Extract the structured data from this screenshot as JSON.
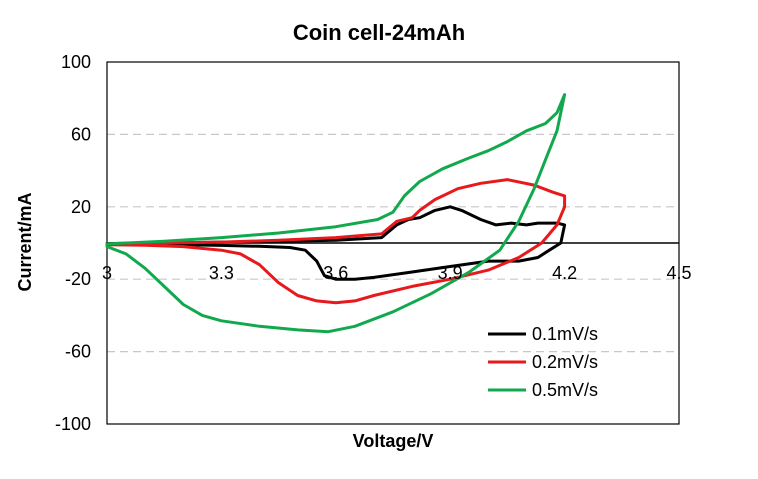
{
  "chart_data": {
    "type": "line",
    "title": "Coin cell-24mAh",
    "xlabel": "Voltage/V",
    "ylabel": "Current/mA",
    "xlim": [
      3,
      4.5
    ],
    "ylim": [
      -100,
      100
    ],
    "xticks": [
      3,
      3.3,
      3.6,
      3.9,
      4.2,
      4.5
    ],
    "xtick_labels": [
      "3",
      "3.3",
      "3.6",
      "3.9",
      "4.2",
      "4.5"
    ],
    "yticks": [
      -100,
      -60,
      -20,
      20,
      60,
      100
    ],
    "ytick_labels": [
      "-100",
      "-60",
      "-20",
      "20",
      "60",
      "100"
    ],
    "grid": "horizontal-dashed",
    "legend_position": "bottom-right",
    "series": [
      {
        "name": "0.1mV/s",
        "color": "#000000",
        "points": [
          [
            3.0,
            -0.5
          ],
          [
            3.1,
            -0.8
          ],
          [
            3.2,
            -1.0
          ],
          [
            3.3,
            -1.3
          ],
          [
            3.4,
            -1.8
          ],
          [
            3.48,
            -2.5
          ],
          [
            3.52,
            -4
          ],
          [
            3.55,
            -10
          ],
          [
            3.57,
            -18
          ],
          [
            3.6,
            -20
          ],
          [
            3.65,
            -20
          ],
          [
            3.7,
            -19
          ],
          [
            3.8,
            -16
          ],
          [
            3.9,
            -13
          ],
          [
            4.0,
            -10
          ],
          [
            4.08,
            -10
          ],
          [
            4.13,
            -8
          ],
          [
            4.16,
            -4
          ],
          [
            4.19,
            0
          ],
          [
            4.2,
            10
          ],
          [
            4.18,
            11
          ],
          [
            4.13,
            11
          ],
          [
            4.1,
            10
          ],
          [
            4.06,
            11
          ],
          [
            4.02,
            10
          ],
          [
            3.98,
            13
          ],
          [
            3.93,
            18
          ],
          [
            3.9,
            20
          ],
          [
            3.86,
            18
          ],
          [
            3.82,
            14
          ],
          [
            3.79,
            13
          ],
          [
            3.76,
            10
          ],
          [
            3.72,
            3
          ],
          [
            3.6,
            1.5
          ],
          [
            3.45,
            1
          ],
          [
            3.3,
            0.5
          ],
          [
            3.15,
            0
          ],
          [
            3.0,
            -0.3
          ]
        ]
      },
      {
        "name": "0.2mV/s",
        "color": "#e8191c",
        "points": [
          [
            3.0,
            -1
          ],
          [
            3.1,
            -1.2
          ],
          [
            3.2,
            -2
          ],
          [
            3.3,
            -4
          ],
          [
            3.35,
            -6
          ],
          [
            3.4,
            -12
          ],
          [
            3.45,
            -22
          ],
          [
            3.5,
            -29
          ],
          [
            3.55,
            -32
          ],
          [
            3.6,
            -33
          ],
          [
            3.65,
            -32
          ],
          [
            3.7,
            -29
          ],
          [
            3.8,
            -24
          ],
          [
            3.9,
            -20
          ],
          [
            4.0,
            -15
          ],
          [
            4.08,
            -8
          ],
          [
            4.14,
            0
          ],
          [
            4.18,
            10
          ],
          [
            4.2,
            20
          ],
          [
            4.2,
            26
          ],
          [
            4.17,
            28
          ],
          [
            4.12,
            32
          ],
          [
            4.05,
            35
          ],
          [
            3.98,
            33
          ],
          [
            3.92,
            30
          ],
          [
            3.86,
            24
          ],
          [
            3.82,
            18
          ],
          [
            3.8,
            14
          ],
          [
            3.76,
            12
          ],
          [
            3.72,
            5
          ],
          [
            3.6,
            3
          ],
          [
            3.45,
            1.5
          ],
          [
            3.3,
            0.5
          ],
          [
            3.15,
            0
          ],
          [
            3.0,
            -0.5
          ]
        ]
      },
      {
        "name": "0.5mV/s",
        "color": "#12a84e",
        "points": [
          [
            3.0,
            -2
          ],
          [
            3.05,
            -6
          ],
          [
            3.1,
            -14
          ],
          [
            3.15,
            -24
          ],
          [
            3.2,
            -34
          ],
          [
            3.25,
            -40
          ],
          [
            3.3,
            -43
          ],
          [
            3.4,
            -46
          ],
          [
            3.5,
            -48
          ],
          [
            3.58,
            -49
          ],
          [
            3.65,
            -46
          ],
          [
            3.75,
            -38
          ],
          [
            3.85,
            -28
          ],
          [
            3.95,
            -16
          ],
          [
            4.03,
            -4
          ],
          [
            4.08,
            12
          ],
          [
            4.12,
            30
          ],
          [
            4.15,
            46
          ],
          [
            4.18,
            62
          ],
          [
            4.2,
            82
          ],
          [
            4.18,
            72
          ],
          [
            4.15,
            66
          ],
          [
            4.1,
            62
          ],
          [
            4.05,
            56
          ],
          [
            4.0,
            51
          ],
          [
            3.95,
            47
          ],
          [
            3.88,
            41
          ],
          [
            3.82,
            34
          ],
          [
            3.78,
            26
          ],
          [
            3.75,
            17
          ],
          [
            3.71,
            13
          ],
          [
            3.6,
            9
          ],
          [
            3.45,
            5.5
          ],
          [
            3.3,
            3
          ],
          [
            3.15,
            1
          ],
          [
            3.05,
            0
          ],
          [
            3.0,
            -0.5
          ]
        ]
      }
    ]
  }
}
